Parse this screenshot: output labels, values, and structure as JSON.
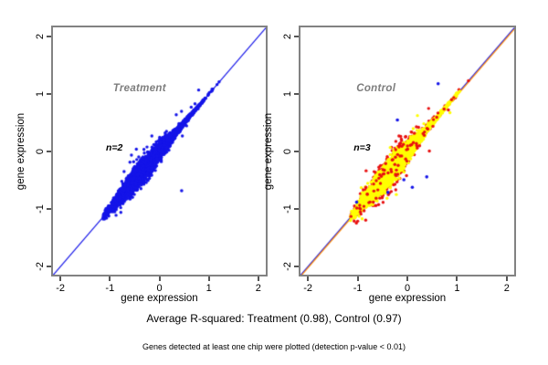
{
  "figure": {
    "background": "#ffffff",
    "caption_primary": "Average R-squared: Treatment (0.98), Control (0.97)",
    "caption_secondary": "Genes detected at least one chip were plotted (detection p-value < 0.01)"
  },
  "colors": {
    "blue_points": "#1414e8",
    "yellow_points": "#ffff00",
    "red_points": "#e81010",
    "identity_blue": "#1414e8",
    "identity_orange": "#ff8c00",
    "panel_label_gray": "#7d7d7d",
    "axis_frame_gray": "#828282"
  },
  "chart_data": [
    {
      "type": "scatter",
      "panel": "treatment",
      "title": "Treatment",
      "annotation": "n=2",
      "xlabel": "gene expression",
      "ylabel": "gene expression",
      "xlim": [
        -2.15,
        2.15
      ],
      "ylim": [
        -2.14,
        2.16
      ],
      "xticks": [
        -2,
        -1,
        0,
        1,
        2
      ],
      "yticks": [
        -2,
        -1,
        0,
        1,
        2
      ],
      "avg_r_squared": 0.98,
      "identity_line_colors": [
        "#1414e8"
      ],
      "title_pos": [
        -0.4,
        1.1
      ],
      "annotation_pos": [
        -0.91,
        0.06
      ],
      "points_estimated": true,
      "cloud": {
        "t_min": -1.15,
        "t_max": 1.3,
        "peak": -0.35,
        "peak_width": 0.6,
        "sigma_base": 0.02,
        "sigma_peak": 0.16
      },
      "series": [
        {
          "name": "treatment-chips-blue",
          "color": "#1414e8",
          "n": 3600,
          "sigma_scale": 1.0,
          "outlier_prob": 0.025,
          "extra": [
            [
              0.45,
              -0.68
            ]
          ]
        }
      ]
    },
    {
      "type": "scatter",
      "panel": "control",
      "title": "Control",
      "annotation": "n=3",
      "xlabel": "gene expression",
      "ylabel": "gene expression",
      "xlim": [
        -2.15,
        2.15
      ],
      "ylim": [
        -2.14,
        2.16
      ],
      "xticks": [
        -2,
        -1,
        0,
        1,
        2
      ],
      "yticks": [
        -2,
        -1,
        0,
        1,
        2
      ],
      "avg_r_squared": 0.97,
      "identity_line_colors": [
        "#1414e8",
        "#ff8c00"
      ],
      "title_pos": [
        -0.63,
        1.1
      ],
      "annotation_pos": [
        -0.91,
        0.06
      ],
      "points_estimated": true,
      "cloud": {
        "t_min": -1.15,
        "t_max": 1.3,
        "peak": -0.35,
        "peak_width": 0.6,
        "sigma_base": 0.02,
        "sigma_peak": 0.16
      },
      "series": [
        {
          "name": "control-chip-red-under",
          "color": "#e81010",
          "n": 700,
          "sigma_scale": 1.55,
          "outlier_prob": 0.06,
          "extra": []
        },
        {
          "name": "control-chip-yellow",
          "color": "#ffff00",
          "n": 3600,
          "sigma_scale": 1.0,
          "outlier_prob": 0.02,
          "extra": []
        },
        {
          "name": "control-chip-red-over",
          "color": "#e81010",
          "n": 90,
          "sigma_scale": 1.85,
          "outlier_prob": 0.12,
          "extra": []
        },
        {
          "name": "control-chip-blue",
          "color": "#1414e8",
          "n": 0,
          "sigma_scale": 1.0,
          "outlier_prob": 0,
          "extra": [
            [
              -0.07,
              -0.49
            ],
            [
              0.39,
              -0.44
            ],
            [
              -0.39,
              -0.71
            ],
            [
              0.1,
              -0.62
            ],
            [
              -0.2,
              0.55
            ],
            [
              0.62,
              1.18
            ],
            [
              -1.02,
              -0.88
            ]
          ]
        }
      ]
    }
  ]
}
